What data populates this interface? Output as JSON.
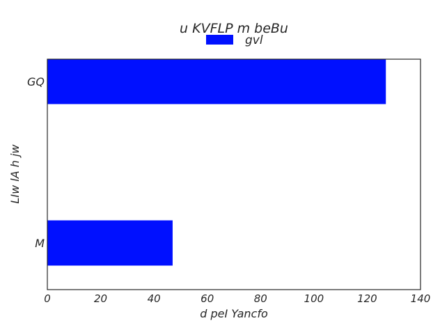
{
  "chart_data": {
    "type": "bar",
    "orientation": "horizontal",
    "title": "u KVFLP m beBu",
    "xlabel": "d peI Yancfo",
    "ylabel": "LIw lA h jw",
    "categories": [
      "M",
      "GQ"
    ],
    "series": [
      {
        "name": "gvl",
        "values": [
          47,
          127
        ],
        "color": "#0010ff"
      }
    ],
    "xlim": [
      0,
      140
    ],
    "xticks": [
      0,
      20,
      40,
      60,
      80,
      100,
      120,
      140
    ],
    "grid": false,
    "legend": "top-center"
  }
}
